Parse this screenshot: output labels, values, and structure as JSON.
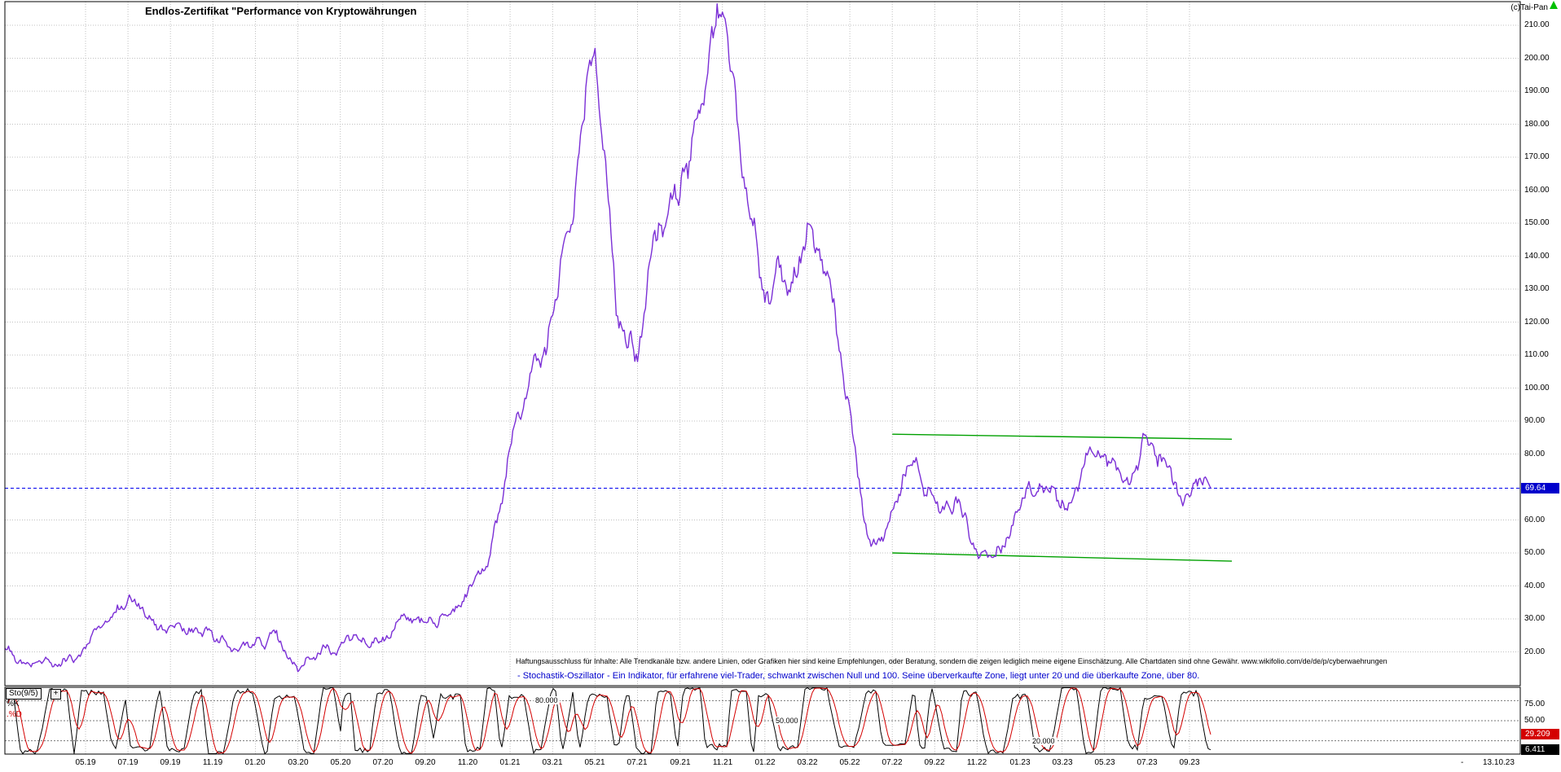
{
  "title": "Endlos-Zertifikat \"Performance von Kryptowährungen",
  "copyright": "(c)Tai-Pan",
  "disclaimer": "Haftungsausschluss für Inhalte: Alle Trendkanäle bzw. andere Linien, oder Grafiken hier sind keine Empfehlungen, oder Beratung, sondern die zeigen lediglich meine eigene Einschätzung. Alle Chartdaten sind ohne Gewähr. www.wikifolio.com/de/de/p/cyberwaehrungen",
  "indicator_note": "- Stochastik-Oszillator - Ein Indikator, für erfahrene viel-Trader, schwankt zwischen Null und 100. Seine überverkaufte Zone, liegt unter 20 und die überkaufte Zone, über 80.",
  "price_axis": {
    "ticks": [
      "210.00",
      "200.00",
      "190.00",
      "180.00",
      "170.00",
      "160.00",
      "150.00",
      "140.00",
      "130.00",
      "120.00",
      "110.00",
      "100.00",
      "90.00",
      "80.00",
      "60.00",
      "50.00",
      "40.00",
      "30.00",
      "20.00"
    ],
    "last_price": "69.64"
  },
  "x_axis": {
    "labels": [
      "05.19",
      "07.19",
      "09.19",
      "11.19",
      "01.20",
      "03.20",
      "05.20",
      "07.20",
      "09.20",
      "11.20",
      "01.21",
      "03.21",
      "05.21",
      "07.21",
      "09.21",
      "11.21",
      "01.22",
      "03.22",
      "05.22",
      "07.22",
      "09.22",
      "11.22",
      "01.23",
      "03.23",
      "05.23",
      "07.23",
      "09.23"
    ],
    "last_date_prefix": "-",
    "last_date": "13.10.23"
  },
  "oscillator_panel": {
    "name": "Sto(9/5)",
    "expand_button": "+",
    "k_label": "%K",
    "d_label": ".%D",
    "level_labels": [
      "80.000",
      "50.000",
      "20.000"
    ],
    "axis_ticks": [
      "75.00",
      "50.00"
    ],
    "d_value": "29.209",
    "k_value": "6.411"
  },
  "colors": {
    "price_line": "#7b2fd6",
    "trend_line": "#00a000",
    "current_price": "#0000ee",
    "price_box_bg": "#0000cc",
    "k_line": "#000000",
    "d_line": "#d40000",
    "d_box_bg": "#d40000",
    "k_box_bg": "#000000",
    "grid": "#c0c0c0",
    "osc_level": "#787878",
    "note_text": "#0000cc",
    "uptick": "#00c000"
  },
  "chart_data": [
    {
      "type": "line",
      "title": "Endlos-Zertifikat \"Performance von Kryptowährungen",
      "x_unit": "month",
      "x": [
        "2019-01",
        "2019-02",
        "2019-03",
        "2019-04",
        "2019-05",
        "2019-06",
        "2019-07",
        "2019-08",
        "2019-09",
        "2019-10",
        "2019-11",
        "2019-12",
        "2020-01",
        "2020-02",
        "2020-03",
        "2020-04",
        "2020-05",
        "2020-06",
        "2020-07",
        "2020-08",
        "2020-09",
        "2020-10",
        "2020-11",
        "2020-12",
        "2021-01",
        "2021-02",
        "2021-03",
        "2021-04",
        "2021-05",
        "2021-06",
        "2021-07",
        "2021-08",
        "2021-09",
        "2021-10",
        "2021-11",
        "2021-12",
        "2022-01",
        "2022-02",
        "2022-03",
        "2022-04",
        "2022-05",
        "2022-06",
        "2022-07",
        "2022-08",
        "2022-09",
        "2022-10",
        "2022-11",
        "2022-12",
        "2023-01",
        "2023-02",
        "2023-03",
        "2023-04",
        "2023-05",
        "2023-06",
        "2023-07",
        "2023-08",
        "2023-09",
        "2023-10"
      ],
      "values": [
        19,
        16.5,
        17,
        18,
        21,
        29,
        36,
        31,
        28,
        27,
        24.5,
        21,
        23,
        26.5,
        14,
        19.5,
        22,
        23,
        24.5,
        31.5,
        29,
        31,
        38,
        48,
        82,
        105,
        122,
        152,
        203,
        122,
        108,
        150,
        158,
        186,
        214,
        164,
        126,
        131,
        150,
        134,
        94,
        52,
        63,
        78,
        66,
        67,
        50,
        52,
        63,
        70,
        66,
        76,
        80,
        72,
        85,
        76,
        67,
        69.64
      ],
      "last_value": 69.64,
      "as_of": "13.10.23",
      "ylim": [
        10,
        217
      ],
      "y_ticks": [
        20,
        30,
        40,
        50,
        60,
        80,
        90,
        100,
        110,
        120,
        130,
        140,
        150,
        160,
        170,
        180,
        190,
        200,
        210
      ],
      "grid": true,
      "legend": "none",
      "annotations": {
        "current_price_line": {
          "y": 69.64,
          "style": "dashed",
          "color": "#0000ee"
        },
        "resistance_line": {
          "from": [
            "2022-07",
            86
          ],
          "to": [
            "2023-10",
            84.5
          ],
          "color": "#00a000"
        },
        "support_line": {
          "from": [
            "2022-07",
            50
          ],
          "to": [
            "2023-10",
            47.5
          ],
          "color": "#00a000"
        }
      }
    },
    {
      "type": "line",
      "name": "Stochastik-Oszillator",
      "params": "Sto(9/5)",
      "range": [
        0,
        100
      ],
      "levels": [
        80,
        50,
        20
      ],
      "series": [
        {
          "name": "%K",
          "color": "#000000",
          "last_value": 6.411
        },
        {
          "name": "%D",
          "color": "#d40000",
          "last_value": 29.209
        }
      ],
      "description": "Both series oscillate rapidly across the full 0-100 band over the whole period; exact historical values are not legible at this scale."
    }
  ]
}
